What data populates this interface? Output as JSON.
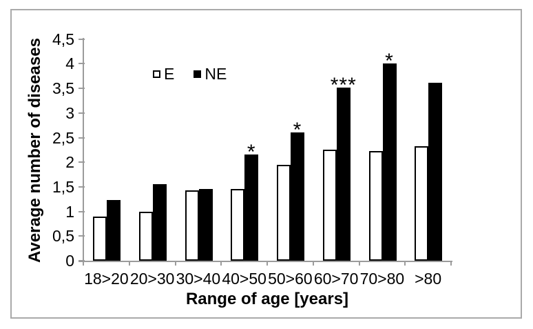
{
  "chart_data": {
    "type": "bar",
    "title": "",
    "xlabel": "Range of age [years]",
    "ylabel": "Average number of diseases",
    "categories": [
      "18>20",
      "20>30",
      "30>40",
      "40>50",
      "50>60",
      "60>70",
      "70>80",
      ">80"
    ],
    "series": [
      {
        "name": "E",
        "fill": "#ffffff",
        "border": "#000000",
        "values": [
          0.9,
          1.0,
          1.43,
          1.45,
          1.95,
          2.26,
          2.23,
          2.33
        ]
      },
      {
        "name": "NE",
        "fill": "#000000",
        "border": "#000000",
        "values": [
          1.23,
          1.56,
          1.46,
          2.16,
          2.61,
          3.52,
          4.01,
          3.61
        ]
      }
    ],
    "annotations": [
      {
        "category": "40>50",
        "series": "NE",
        "text": "*"
      },
      {
        "category": "50>60",
        "series": "NE",
        "text": "*"
      },
      {
        "category": "60>70",
        "series": "NE",
        "text": "***"
      },
      {
        "category": "70>80",
        "series": "NE",
        "text": "*"
      }
    ],
    "ylim": [
      0,
      4.5
    ],
    "ytick_step": 0.5,
    "ytick_labels": [
      "0",
      "0,5",
      "1",
      "1,5",
      "2",
      "2,5",
      "3",
      "3,5",
      "4",
      "4,5"
    ],
    "decimal_separator": ",",
    "grid": false,
    "legend_position": "top-center",
    "colors": {
      "frame_border": "#a9a9a9",
      "axis": "#9b9b9b",
      "text": "#000000"
    }
  }
}
